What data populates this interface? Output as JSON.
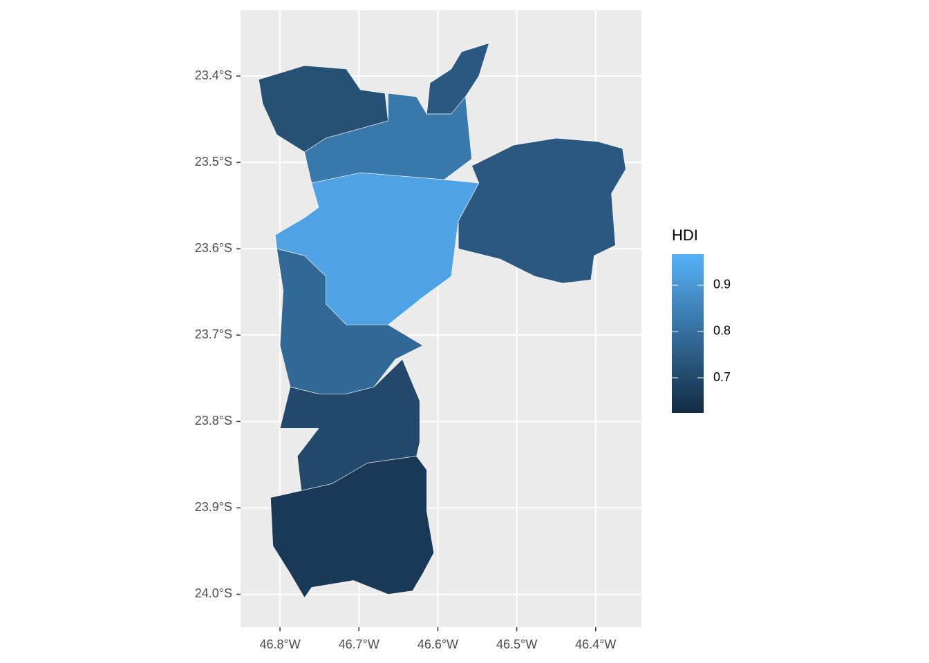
{
  "chart_data": {
    "type": "choropleth",
    "xlim": [
      -46.85,
      -46.342
    ],
    "ylim": [
      -24.038,
      -23.324
    ],
    "xticks": [
      {
        "value": -46.8,
        "label": "46.8°W"
      },
      {
        "value": -46.7,
        "label": "46.7°W"
      },
      {
        "value": -46.6,
        "label": "46.6°W"
      },
      {
        "value": -46.5,
        "label": "46.5°W"
      },
      {
        "value": -46.4,
        "label": "46.4°W"
      }
    ],
    "yticks": [
      {
        "value": -23.4,
        "label": "23.4°S"
      },
      {
        "value": -23.5,
        "label": "23.5°S"
      },
      {
        "value": -23.6,
        "label": "23.6°S"
      },
      {
        "value": -23.7,
        "label": "23.7°S"
      },
      {
        "value": -23.8,
        "label": "23.8°S"
      },
      {
        "value": -23.9,
        "label": "23.9°S"
      },
      {
        "value": -24.0,
        "label": "24.0°S"
      }
    ],
    "grid": true,
    "legend": {
      "title": "HDI",
      "low": "#132B43",
      "high": "#56B1F7",
      "limits": [
        0.624,
        0.967
      ],
      "ticks": [
        0.7,
        0.8,
        0.9
      ]
    },
    "regions": [
      {
        "hdi": 0.72,
        "coords": [
          [
            -46.827,
            -23.404
          ],
          [
            -46.769,
            -23.388
          ],
          [
            -46.716,
            -23.392
          ],
          [
            -46.698,
            -23.416
          ],
          [
            -46.667,
            -23.42
          ],
          [
            -46.663,
            -23.452
          ],
          [
            -46.742,
            -23.472
          ],
          [
            -46.769,
            -23.488
          ],
          [
            -46.804,
            -23.468
          ],
          [
            -46.822,
            -23.432
          ]
        ]
      },
      {
        "hdi": 0.74,
        "coords": [
          [
            -46.61,
            -23.408
          ],
          [
            -46.583,
            -23.392
          ],
          [
            -46.57,
            -23.372
          ],
          [
            -46.535,
            -23.362
          ],
          [
            -46.548,
            -23.4
          ],
          [
            -46.565,
            -23.424
          ],
          [
            -46.583,
            -23.444
          ],
          [
            -46.614,
            -23.444
          ]
        ]
      },
      {
        "hdi": 0.82,
        "coords": [
          [
            -46.769,
            -23.488
          ],
          [
            -46.742,
            -23.472
          ],
          [
            -46.663,
            -23.452
          ],
          [
            -46.663,
            -23.42
          ],
          [
            -46.627,
            -23.424
          ],
          [
            -46.614,
            -23.444
          ],
          [
            -46.583,
            -23.444
          ],
          [
            -46.565,
            -23.424
          ],
          [
            -46.557,
            -23.496
          ],
          [
            -46.592,
            -23.52
          ],
          [
            -46.698,
            -23.512
          ],
          [
            -46.76,
            -23.524
          ]
        ]
      },
      {
        "hdi": 0.93,
        "coords": [
          [
            -46.76,
            -23.524
          ],
          [
            -46.698,
            -23.512
          ],
          [
            -46.592,
            -23.52
          ],
          [
            -46.548,
            -23.524
          ],
          [
            -46.574,
            -23.568
          ],
          [
            -46.583,
            -23.632
          ],
          [
            -46.619,
            -23.656
          ],
          [
            -46.663,
            -23.688
          ],
          [
            -46.716,
            -23.688
          ],
          [
            -46.742,
            -23.664
          ],
          [
            -46.742,
            -23.632
          ],
          [
            -46.769,
            -23.608
          ],
          [
            -46.804,
            -23.6
          ],
          [
            -46.806,
            -23.584
          ],
          [
            -46.769,
            -23.564
          ],
          [
            -46.751,
            -23.552
          ]
        ]
      },
      {
        "hdi": 0.74,
        "coords": [
          [
            -46.557,
            -23.504
          ],
          [
            -46.504,
            -23.48
          ],
          [
            -46.45,
            -23.472
          ],
          [
            -46.397,
            -23.476
          ],
          [
            -46.366,
            -23.484
          ],
          [
            -46.362,
            -23.508
          ],
          [
            -46.38,
            -23.536
          ],
          [
            -46.375,
            -23.596
          ],
          [
            -46.402,
            -23.608
          ],
          [
            -46.406,
            -23.636
          ],
          [
            -46.442,
            -23.64
          ],
          [
            -46.477,
            -23.632
          ],
          [
            -46.521,
            -23.612
          ],
          [
            -46.574,
            -23.6
          ],
          [
            -46.574,
            -23.568
          ],
          [
            -46.548,
            -23.524
          ]
        ]
      },
      {
        "hdi": 0.78,
        "coords": [
          [
            -46.804,
            -23.6
          ],
          [
            -46.769,
            -23.608
          ],
          [
            -46.742,
            -23.632
          ],
          [
            -46.742,
            -23.664
          ],
          [
            -46.716,
            -23.688
          ],
          [
            -46.663,
            -23.688
          ],
          [
            -46.619,
            -23.712
          ],
          [
            -46.654,
            -23.728
          ],
          [
            -46.681,
            -23.76
          ],
          [
            -46.716,
            -23.768
          ],
          [
            -46.751,
            -23.768
          ],
          [
            -46.787,
            -23.76
          ],
          [
            -46.8,
            -23.712
          ],
          [
            -46.796,
            -23.648
          ]
        ]
      },
      {
        "hdi": 0.7,
        "coords": [
          [
            -46.787,
            -23.76
          ],
          [
            -46.751,
            -23.768
          ],
          [
            -46.716,
            -23.768
          ],
          [
            -46.681,
            -23.76
          ],
          [
            -46.645,
            -23.728
          ],
          [
            -46.623,
            -23.776
          ],
          [
            -46.623,
            -23.824
          ],
          [
            -46.627,
            -23.84
          ],
          [
            -46.689,
            -23.848
          ],
          [
            -46.734,
            -23.872
          ],
          [
            -46.773,
            -23.88
          ],
          [
            -46.778,
            -23.84
          ],
          [
            -46.751,
            -23.808
          ],
          [
            -46.8,
            -23.808
          ]
        ]
      },
      {
        "hdi": 0.66,
        "coords": [
          [
            -46.773,
            -23.88
          ],
          [
            -46.734,
            -23.872
          ],
          [
            -46.689,
            -23.848
          ],
          [
            -46.627,
            -23.84
          ],
          [
            -46.614,
            -23.856
          ],
          [
            -46.614,
            -23.904
          ],
          [
            -46.605,
            -23.952
          ],
          [
            -46.619,
            -23.976
          ],
          [
            -46.632,
            -23.996
          ],
          [
            -46.663,
            -24.0
          ],
          [
            -46.707,
            -23.984
          ],
          [
            -46.76,
            -23.992
          ],
          [
            -46.769,
            -24.004
          ],
          [
            -46.787,
            -23.976
          ],
          [
            -46.809,
            -23.944
          ],
          [
            -46.812,
            -23.888
          ]
        ]
      }
    ]
  }
}
